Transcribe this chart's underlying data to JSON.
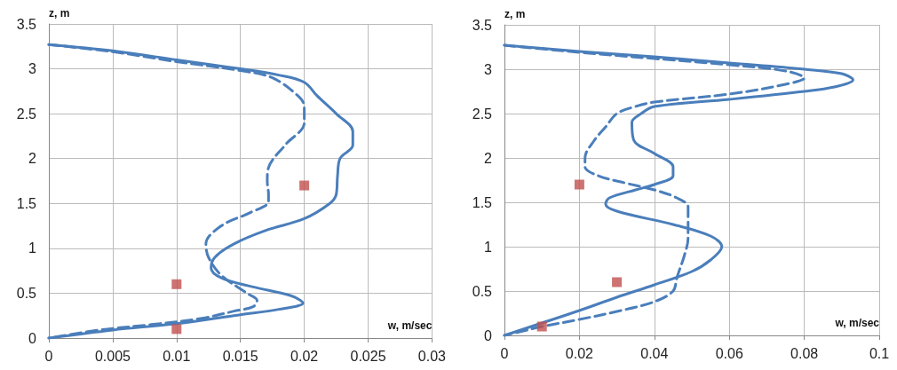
{
  "chart_data": [
    {
      "type": "line",
      "xlabel": "w, m/sec",
      "ylabel": "z, m",
      "xlim": [
        0,
        0.03
      ],
      "xticks": [
        0,
        0.005,
        0.01,
        0.015,
        0.02,
        0.025,
        0.03
      ],
      "ylim": [
        0,
        3.5
      ],
      "yticks": [
        0,
        0.5,
        1,
        1.5,
        2,
        2.5,
        3,
        3.5
      ],
      "grid": true,
      "series": [
        {
          "color": "#4a7ebb",
          "line_style": "solid",
          "marker": "none",
          "x": [
            0,
            0.005,
            0.01,
            0.015,
            0.018,
            0.02,
            0.021,
            0.0225,
            0.0238,
            0.0238,
            0.0228,
            0.0226,
            0.0225,
            0.022,
            0.02,
            0.017,
            0.0145,
            0.013,
            0.0127,
            0.0135,
            0.016,
            0.019,
            0.0199,
            0.018,
            0.015,
            0.01,
            0.005,
            0
          ],
          "values": [
            3.27,
            3.2,
            3.1,
            3.0,
            2.93,
            2.85,
            2.7,
            2.5,
            2.3,
            2.15,
            2.0,
            1.8,
            1.6,
            1.5,
            1.33,
            1.2,
            1.05,
            0.9,
            0.78,
            0.67,
            0.57,
            0.47,
            0.39,
            0.32,
            0.26,
            0.16,
            0.09,
            0
          ]
        },
        {
          "color": "#4a7ebb",
          "line_style": "dashed",
          "marker": "none",
          "x": [
            0,
            0.005,
            0.01,
            0.015,
            0.0175,
            0.0195,
            0.02,
            0.02,
            0.0185,
            0.0172,
            0.0171,
            0.0172,
            0.0172,
            0.0158,
            0.0135,
            0.0123,
            0.0125,
            0.0135,
            0.0155,
            0.0163,
            0.016,
            0.0145,
            0.012,
            0.008,
            0.004,
            0
          ],
          "values": [
            3.27,
            3.19,
            3.08,
            2.98,
            2.9,
            2.7,
            2.58,
            2.4,
            2.15,
            1.9,
            1.75,
            1.6,
            1.52,
            1.4,
            1.25,
            1.05,
            0.9,
            0.7,
            0.5,
            0.42,
            0.35,
            0.3,
            0.22,
            0.15,
            0.09,
            0
          ]
        },
        {
          "type": "scatter",
          "color": "#c0504d",
          "marker": "square",
          "x": [
            0.01,
            0.01,
            0.02
          ],
          "values": [
            0.1,
            0.6,
            1.7
          ]
        }
      ]
    },
    {
      "type": "line",
      "xlabel": "w, m/sec",
      "ylabel": "z, m",
      "xlim": [
        0,
        0.1
      ],
      "xticks": [
        0,
        0.02,
        0.04,
        0.06,
        0.08,
        0.1
      ],
      "ylim": [
        0,
        3.5
      ],
      "yticks": [
        0,
        0.5,
        1,
        1.5,
        2,
        2.5,
        3,
        3.5
      ],
      "grid": true,
      "series": [
        {
          "color": "#4a7ebb",
          "line_style": "solid",
          "marker": "none",
          "x": [
            0,
            0.02,
            0.04,
            0.06,
            0.08,
            0.09,
            0.093,
            0.088,
            0.08,
            0.06,
            0.04,
            0.0365,
            0.034,
            0.0345,
            0.04,
            0.045,
            0.045,
            0.04,
            0.035,
            0.028,
            0.027,
            0.03,
            0.045,
            0.055,
            0.058,
            0.055,
            0.05,
            0.04,
            0.03,
            0.02,
            0.01,
            0
          ],
          "values": [
            3.27,
            3.2,
            3.14,
            3.07,
            3.0,
            2.95,
            2.88,
            2.8,
            2.75,
            2.66,
            2.58,
            2.5,
            2.4,
            2.2,
            2.05,
            1.9,
            1.8,
            1.7,
            1.64,
            1.55,
            1.48,
            1.4,
            1.25,
            1.12,
            1.0,
            0.85,
            0.72,
            0.57,
            0.43,
            0.28,
            0.14,
            0
          ]
        },
        {
          "color": "#4a7ebb",
          "line_style": "dashed",
          "marker": "none",
          "x": [
            0,
            0.02,
            0.04,
            0.06,
            0.075,
            0.08,
            0.075,
            0.06,
            0.04,
            0.035,
            0.03,
            0.027,
            0.024,
            0.0215,
            0.0215,
            0.025,
            0.032,
            0.04,
            0.046,
            0.049,
            0.049,
            0.049,
            0.048,
            0.046,
            0.045,
            0.04,
            0.03,
            0.02,
            0.01,
            0.005,
            0
          ],
          "values": [
            3.27,
            3.19,
            3.12,
            3.05,
            2.98,
            2.9,
            2.83,
            2.72,
            2.63,
            2.58,
            2.5,
            2.35,
            2.2,
            2.0,
            1.9,
            1.8,
            1.72,
            1.64,
            1.55,
            1.45,
            1.3,
            1.1,
            0.9,
            0.65,
            0.5,
            0.38,
            0.27,
            0.18,
            0.1,
            0.05,
            0
          ]
        },
        {
          "type": "scatter",
          "color": "#c0504d",
          "marker": "square",
          "x": [
            0.01,
            0.03,
            0.02
          ],
          "values": [
            0.1,
            0.6,
            1.7
          ]
        }
      ]
    }
  ]
}
